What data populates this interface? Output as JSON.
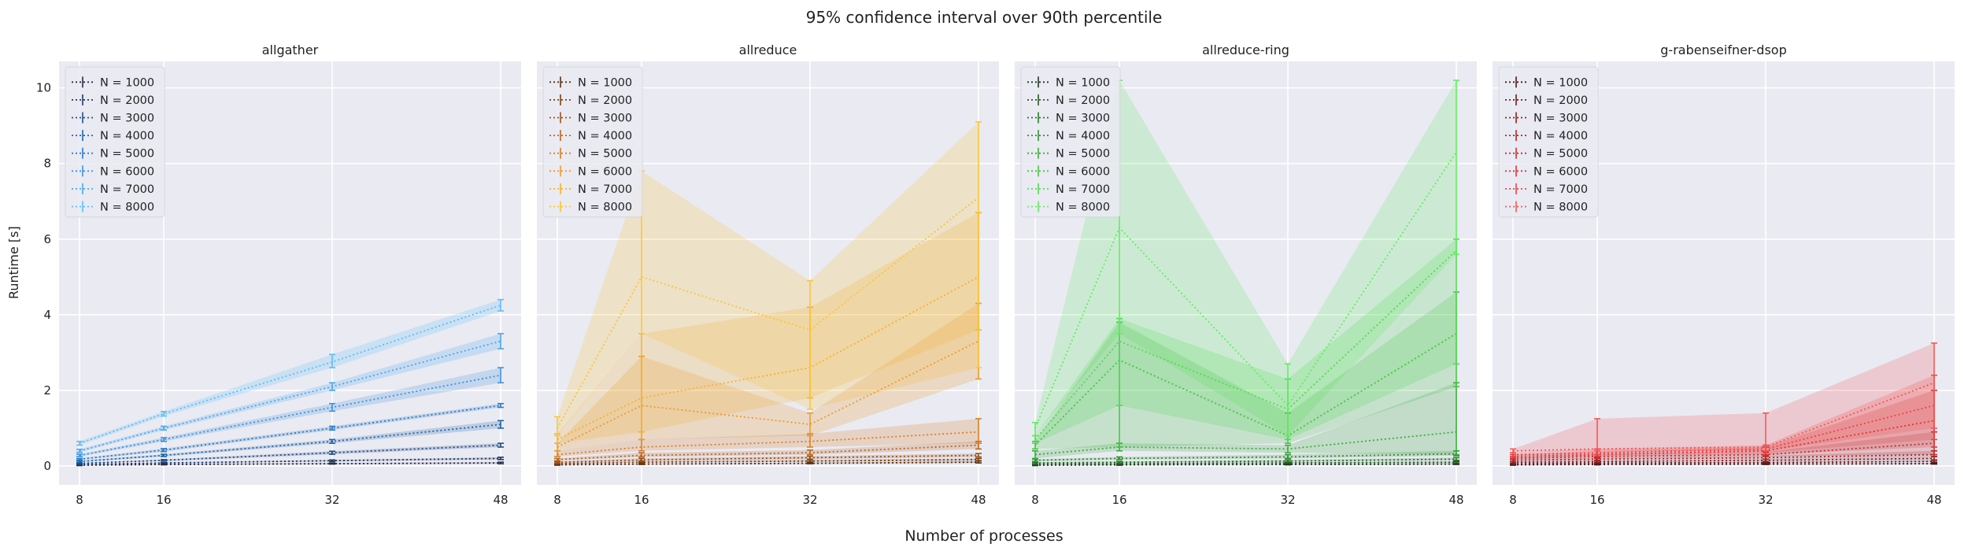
{
  "figure": {
    "suptitle": "95% confidence interval over 90th percentile",
    "xlabel": "Number of processes",
    "ylabel": "Runtime [s]"
  },
  "chart_data": [
    {
      "type": "line",
      "title": "allgather",
      "x": [
        8,
        16,
        32,
        48
      ],
      "xticks": [
        8,
        16,
        32,
        48
      ],
      "yticks": [
        0,
        2,
        4,
        6,
        8,
        10
      ],
      "ylim": [
        -0.5,
        10.7
      ],
      "grid": true,
      "legend": "top-left",
      "shaded_band": "95% CI",
      "colors": [
        "#2a2a4a",
        "#1f3a66",
        "#1f4f8a",
        "#1f66aa",
        "#2a7cc6",
        "#3b93dc",
        "#4aa8ec",
        "#5bbef8"
      ],
      "series": [
        {
          "name": "N = 1000",
          "values": [
            0.02,
            0.04,
            0.06,
            0.08
          ],
          "low": [
            0.01,
            0.03,
            0.05,
            0.06
          ],
          "high": [
            0.03,
            0.05,
            0.08,
            0.1
          ]
        },
        {
          "name": "N = 2000",
          "values": [
            0.04,
            0.08,
            0.14,
            0.2
          ],
          "low": [
            0.03,
            0.07,
            0.12,
            0.17
          ],
          "high": [
            0.05,
            0.09,
            0.16,
            0.23
          ]
        },
        {
          "name": "N = 3000",
          "values": [
            0.07,
            0.15,
            0.35,
            0.55
          ],
          "low": [
            0.06,
            0.13,
            0.31,
            0.5
          ],
          "high": [
            0.08,
            0.17,
            0.39,
            0.6
          ]
        },
        {
          "name": "N = 4000",
          "values": [
            0.12,
            0.28,
            0.65,
            1.1
          ],
          "low": [
            0.1,
            0.25,
            0.6,
            1.0
          ],
          "high": [
            0.14,
            0.31,
            0.7,
            1.2
          ]
        },
        {
          "name": "N = 5000",
          "values": [
            0.18,
            0.42,
            1.0,
            1.6
          ],
          "low": [
            0.16,
            0.38,
            0.95,
            1.55
          ],
          "high": [
            0.2,
            0.46,
            1.05,
            1.65
          ]
        },
        {
          "name": "N = 6000",
          "values": [
            0.28,
            0.7,
            1.55,
            2.4
          ],
          "low": [
            0.25,
            0.65,
            1.45,
            2.2
          ],
          "high": [
            0.31,
            0.75,
            1.65,
            2.6
          ]
        },
        {
          "name": "N = 7000",
          "values": [
            0.4,
            1.0,
            2.1,
            3.3
          ],
          "low": [
            0.36,
            0.95,
            2.0,
            3.1
          ],
          "high": [
            0.44,
            1.05,
            2.2,
            3.5
          ]
        },
        {
          "name": "N = 8000",
          "values": [
            0.6,
            1.38,
            2.75,
            4.25
          ],
          "low": [
            0.55,
            1.32,
            2.6,
            4.1
          ],
          "high": [
            0.65,
            1.44,
            2.95,
            4.4
          ]
        }
      ]
    },
    {
      "type": "line",
      "title": "allreduce",
      "x": [
        8,
        16,
        32,
        48
      ],
      "xticks": [
        8,
        16,
        32,
        48
      ],
      "yticks": [
        0,
        2,
        4,
        6,
        8,
        10
      ],
      "ylim": [
        -0.5,
        10.7
      ],
      "grid": true,
      "legend": "top-left",
      "shaded_band": "95% CI",
      "colors": [
        "#5a3010",
        "#7a4114",
        "#9a5318",
        "#ba661c",
        "#d97f20",
        "#ee9a26",
        "#f6b12c",
        "#fcc534"
      ],
      "series": [
        {
          "name": "N = 1000",
          "values": [
            0.03,
            0.05,
            0.07,
            0.1
          ],
          "low": [
            0.02,
            0.04,
            0.06,
            0.08
          ],
          "high": [
            0.04,
            0.06,
            0.09,
            0.13
          ]
        },
        {
          "name": "N = 2000",
          "values": [
            0.06,
            0.1,
            0.13,
            0.17
          ],
          "low": [
            0.05,
            0.09,
            0.11,
            0.14
          ],
          "high": [
            0.08,
            0.12,
            0.16,
            0.2
          ]
        },
        {
          "name": "N = 3000",
          "values": [
            0.1,
            0.16,
            0.22,
            0.28
          ],
          "low": [
            0.08,
            0.13,
            0.18,
            0.24
          ],
          "high": [
            0.12,
            0.2,
            0.26,
            0.33
          ]
        },
        {
          "name": "N = 4000",
          "values": [
            0.17,
            0.28,
            0.35,
            0.55
          ],
          "low": [
            0.14,
            0.24,
            0.3,
            0.45
          ],
          "high": [
            0.2,
            0.35,
            0.42,
            0.65
          ]
        },
        {
          "name": "N = 5000",
          "values": [
            0.3,
            0.5,
            0.65,
            0.9
          ],
          "low": [
            0.25,
            0.4,
            0.5,
            0.6
          ],
          "high": [
            0.4,
            0.7,
            0.85,
            1.25
          ]
        },
        {
          "name": "N = 6000",
          "values": [
            0.5,
            1.6,
            1.1,
            3.3
          ],
          "low": [
            0.4,
            0.7,
            0.8,
            2.3
          ],
          "high": [
            0.6,
            2.9,
            1.4,
            4.3
          ]
        },
        {
          "name": "N = 7000",
          "values": [
            0.7,
            1.8,
            2.6,
            5.0
          ],
          "low": [
            0.6,
            0.9,
            1.8,
            3.6
          ],
          "high": [
            0.85,
            3.5,
            4.2,
            6.7
          ]
        },
        {
          "name": "N = 8000",
          "values": [
            1.0,
            5.0,
            3.6,
            7.1
          ],
          "low": [
            0.8,
            3.5,
            1.5,
            2.6
          ],
          "high": [
            1.3,
            7.8,
            4.9,
            9.1
          ]
        }
      ]
    },
    {
      "type": "line",
      "title": "allreduce-ring",
      "x": [
        8,
        16,
        32,
        48
      ],
      "xticks": [
        8,
        16,
        32,
        48
      ],
      "yticks": [
        0,
        2,
        4,
        6,
        8,
        10
      ],
      "ylim": [
        -0.5,
        10.7
      ],
      "grid": true,
      "legend": "top-left",
      "shaded_band": "95% CI",
      "colors": [
        "#1e3c1e",
        "#245a24",
        "#2a782a",
        "#309430",
        "#38ae38",
        "#44c644",
        "#52dc52",
        "#62ec62"
      ],
      "series": [
        {
          "name": "N = 1000",
          "values": [
            0.02,
            0.03,
            0.04,
            0.05
          ],
          "low": [
            0.01,
            0.02,
            0.03,
            0.04
          ],
          "high": [
            0.03,
            0.04,
            0.05,
            0.07
          ]
        },
        {
          "name": "N = 2000",
          "values": [
            0.05,
            0.06,
            0.08,
            0.1
          ],
          "low": [
            0.04,
            0.05,
            0.07,
            0.08
          ],
          "high": [
            0.06,
            0.07,
            0.1,
            0.12
          ]
        },
        {
          "name": "N = 3000",
          "values": [
            0.08,
            0.1,
            0.13,
            0.18
          ],
          "low": [
            0.06,
            0.08,
            0.11,
            0.15
          ],
          "high": [
            0.1,
            0.12,
            0.16,
            0.22
          ]
        },
        {
          "name": "N = 4000",
          "values": [
            0.15,
            0.2,
            0.24,
            0.32
          ],
          "low": [
            0.12,
            0.17,
            0.2,
            0.27
          ],
          "high": [
            0.18,
            0.24,
            0.3,
            0.4
          ]
        },
        {
          "name": "N = 5000",
          "values": [
            0.3,
            0.5,
            0.45,
            0.9
          ],
          "low": [
            0.2,
            0.4,
            0.35,
            0.3
          ],
          "high": [
            0.4,
            0.6,
            0.55,
            2.2
          ]
        },
        {
          "name": "N = 6000",
          "values": [
            0.55,
            2.8,
            0.8,
            3.5
          ],
          "low": [
            0.45,
            0.5,
            0.6,
            2.1
          ],
          "high": [
            0.65,
            3.8,
            1.4,
            4.6
          ]
        },
        {
          "name": "N = 7000",
          "values": [
            0.7,
            3.3,
            1.5,
            5.7
          ],
          "low": [
            0.6,
            1.6,
            0.7,
            2.7
          ],
          "high": [
            0.8,
            3.9,
            2.3,
            6.0
          ]
        },
        {
          "name": "N = 8000",
          "values": [
            1.0,
            6.3,
            1.6,
            8.3
          ],
          "low": [
            0.8,
            3.5,
            0.8,
            5.6
          ],
          "high": [
            1.15,
            10.2,
            2.7,
            10.2
          ]
        }
      ]
    },
    {
      "type": "line",
      "title": "g-rabenseifner-dsop",
      "x": [
        8,
        16,
        32,
        48
      ],
      "xticks": [
        8,
        16,
        32,
        48
      ],
      "yticks": [
        0,
        2,
        4,
        6,
        8,
        10
      ],
      "ylim": [
        -0.5,
        10.7
      ],
      "grid": true,
      "legend": "top-left",
      "shaded_band": "95% CI",
      "colors": [
        "#4a1818",
        "#6a1e1e",
        "#8a2222",
        "#a82828",
        "#c42e2e",
        "#dc3636",
        "#ec4444",
        "#f45656"
      ],
      "series": [
        {
          "name": "N = 1000",
          "values": [
            0.03,
            0.04,
            0.05,
            0.06
          ],
          "low": [
            0.02,
            0.03,
            0.04,
            0.05
          ],
          "high": [
            0.04,
            0.05,
            0.06,
            0.08
          ]
        },
        {
          "name": "N = 2000",
          "values": [
            0.06,
            0.08,
            0.09,
            0.12
          ],
          "low": [
            0.05,
            0.07,
            0.08,
            0.1
          ],
          "high": [
            0.07,
            0.09,
            0.11,
            0.15
          ]
        },
        {
          "name": "N = 3000",
          "values": [
            0.1,
            0.12,
            0.15,
            0.2
          ],
          "low": [
            0.08,
            0.1,
            0.12,
            0.16
          ],
          "high": [
            0.12,
            0.14,
            0.18,
            0.25
          ]
        },
        {
          "name": "N = 4000",
          "values": [
            0.15,
            0.18,
            0.22,
            0.3
          ],
          "low": [
            0.12,
            0.15,
            0.18,
            0.25
          ],
          "high": [
            0.18,
            0.22,
            0.27,
            0.4
          ]
        },
        {
          "name": "N = 5000",
          "values": [
            0.2,
            0.25,
            0.3,
            0.6
          ],
          "low": [
            0.17,
            0.2,
            0.25,
            0.3
          ],
          "high": [
            0.24,
            0.3,
            0.37,
            0.9
          ]
        },
        {
          "name": "N = 6000",
          "values": [
            0.25,
            0.3,
            0.4,
            1.2
          ],
          "low": [
            0.2,
            0.25,
            0.3,
            0.5
          ],
          "high": [
            0.3,
            0.4,
            0.5,
            2.0
          ]
        },
        {
          "name": "N = 7000",
          "values": [
            0.3,
            0.35,
            0.45,
            1.6
          ],
          "low": [
            0.25,
            0.3,
            0.35,
            0.7
          ],
          "high": [
            0.35,
            0.45,
            0.55,
            2.4
          ]
        },
        {
          "name": "N = 8000",
          "values": [
            0.4,
            0.45,
            0.5,
            2.2
          ],
          "low": [
            0.35,
            0.4,
            0.4,
            1.0
          ],
          "high": [
            0.45,
            1.25,
            1.4,
            3.25
          ]
        }
      ]
    }
  ]
}
